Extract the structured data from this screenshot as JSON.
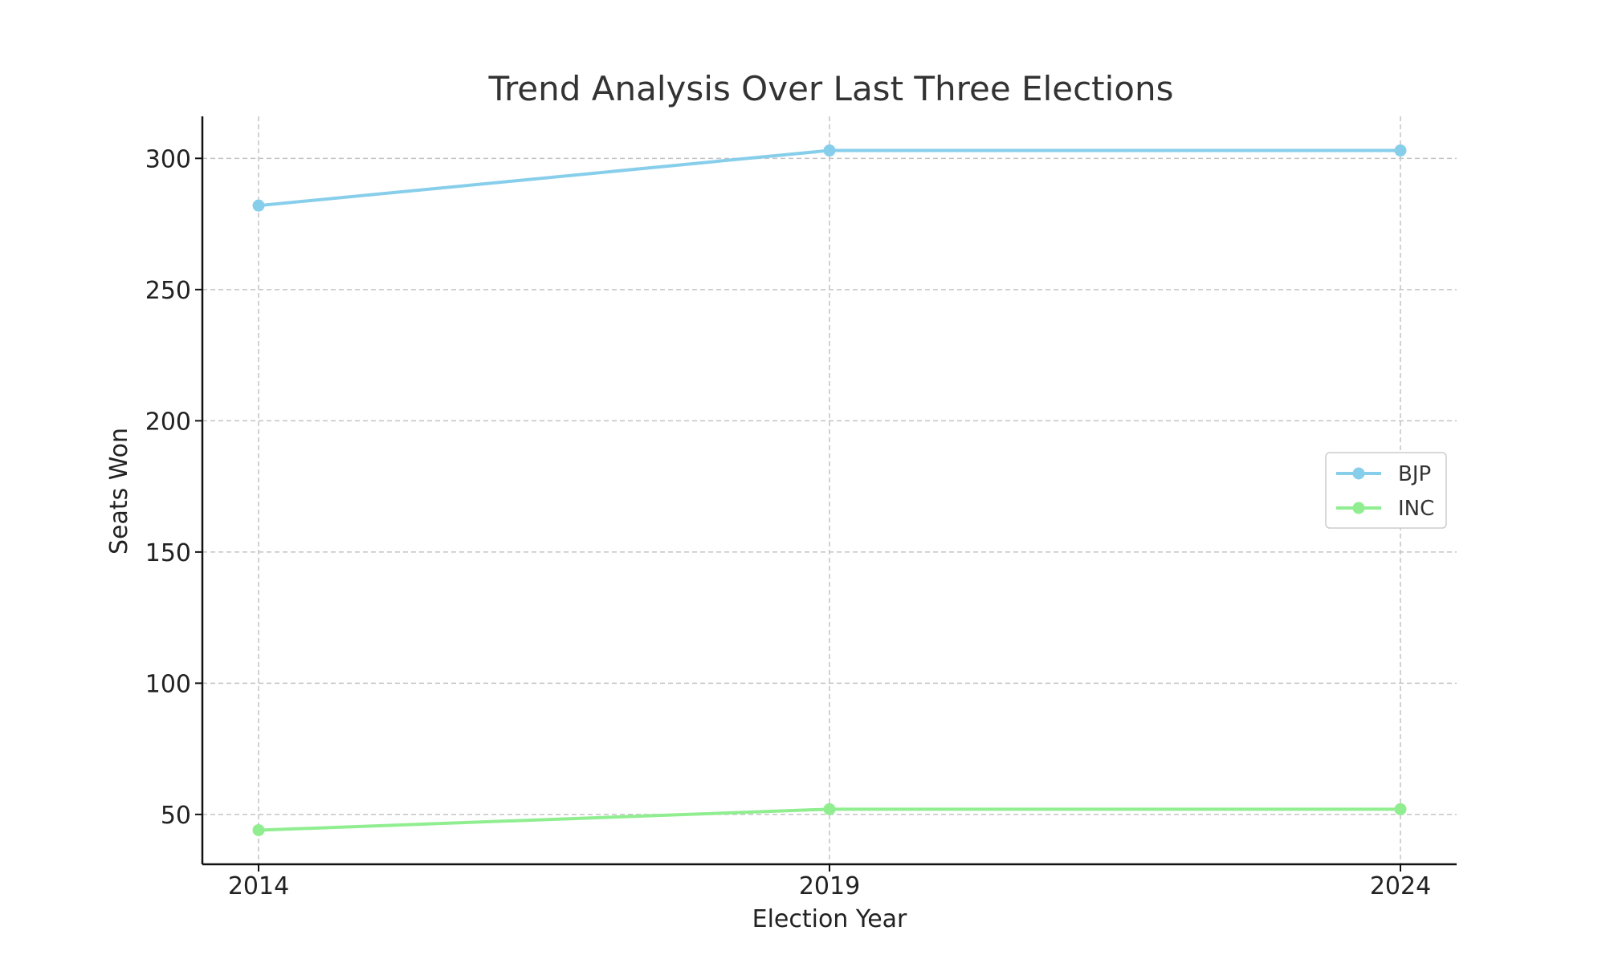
{
  "chart_data": {
    "type": "line",
    "title": "Trend Analysis Over Last Three Elections",
    "xlabel": "Election Year",
    "ylabel": "Seats Won",
    "categories": [
      "2014",
      "2019",
      "2024"
    ],
    "series": [
      {
        "name": "BJP",
        "values": [
          282,
          303,
          303
        ],
        "color": "#87ceeb"
      },
      {
        "name": "INC",
        "values": [
          44,
          52,
          52
        ],
        "color": "#90ee90"
      }
    ],
    "yticks": [
      50,
      100,
      150,
      200,
      250,
      300
    ],
    "ylim": [
      31,
      316
    ],
    "grid": true,
    "legend_position": "center-right"
  }
}
